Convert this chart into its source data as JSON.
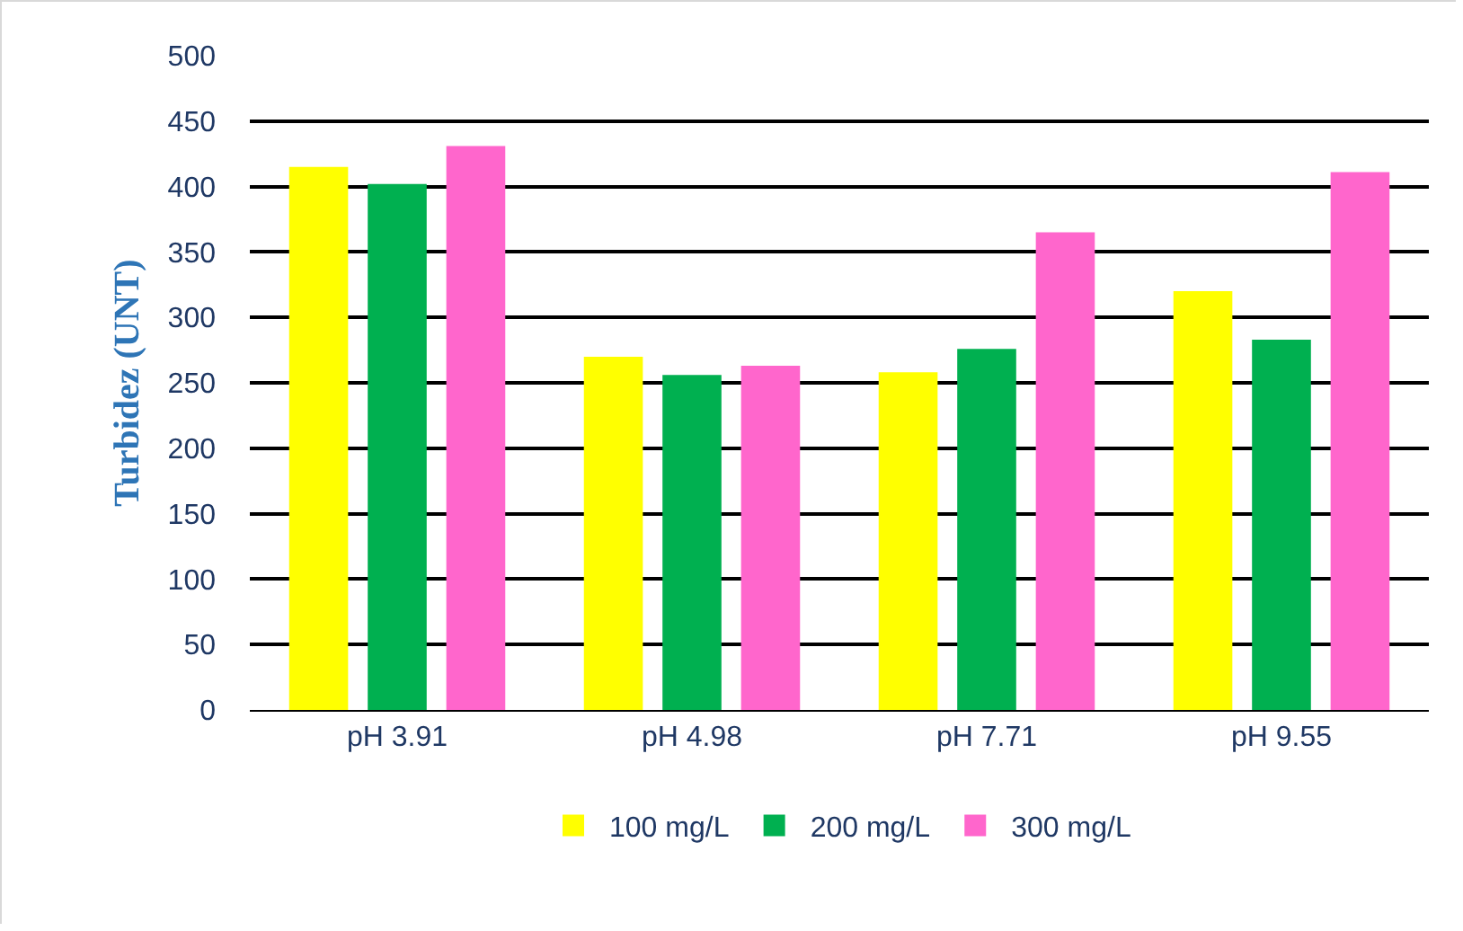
{
  "chart_data": {
    "type": "bar",
    "ylabel": "Turbidez (UNT)",
    "categories": [
      "pH 3.91",
      "pH 4.98",
      "pH 7.71",
      "pH 9.55"
    ],
    "series": [
      {
        "name": "100 mg/L",
        "color": "#ffff00",
        "values": [
          415,
          270,
          258,
          320
        ]
      },
      {
        "name": "200 mg/L",
        "color": "#00b050",
        "values": [
          402,
          256,
          276,
          283
        ]
      },
      {
        "name": "300 mg/L",
        "color": "#ff66cc",
        "values": [
          431,
          263,
          365,
          411
        ]
      }
    ],
    "ylim": [
      0,
      500
    ],
    "yticks": [
      0,
      50,
      100,
      150,
      200,
      250,
      300,
      350,
      400,
      450,
      500
    ],
    "grid": "y",
    "legend": "bottom"
  }
}
